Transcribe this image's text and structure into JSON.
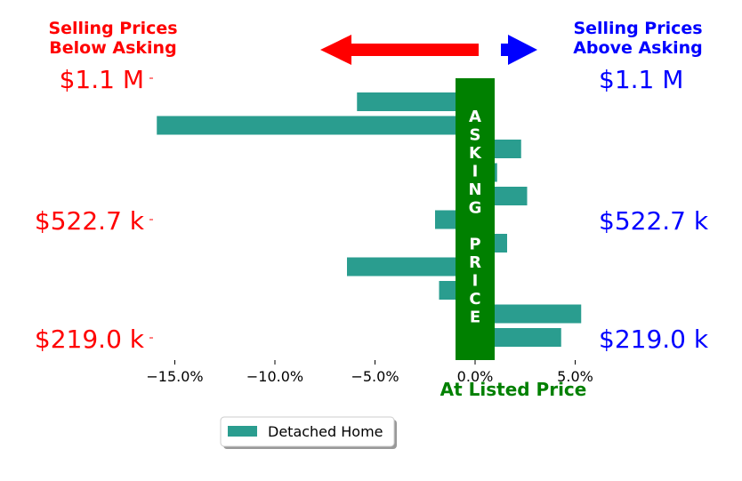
{
  "colors": {
    "bar": "#2a9d8f",
    "below": "#ff0000",
    "above": "#0000ff",
    "asking": "#008000"
  },
  "headers": {
    "below_line1": "Selling Prices",
    "below_line2": "Below Asking",
    "above_line1": "Selling Prices",
    "above_line2": "Above Asking"
  },
  "price_labels": {
    "top": "$1.1 M",
    "middle": "$522.7 k",
    "bottom": "$219.0 k"
  },
  "asking_letters": [
    "A",
    "S",
    "K",
    "I",
    "N",
    "G",
    "",
    "P",
    "R",
    "I",
    "C",
    "E"
  ],
  "listed_label": "At Listed Price",
  "legend_label": "Detached Home",
  "chart_data": {
    "type": "bar",
    "orientation": "horizontal",
    "series": [
      {
        "name": "Detached Home",
        "values": [
          -5.9,
          -15.9,
          2.3,
          1.1,
          2.6,
          -2.0,
          1.6,
          -6.4,
          -1.8,
          5.3,
          4.3
        ]
      }
    ],
    "xlim": [
      -17.5,
      5.9
    ],
    "xticks": [
      "−15.0%",
      "−10.0%",
      "−5.0%",
      "0.0%",
      "5.0%"
    ],
    "xtick_values": [
      -15,
      -10,
      -5,
      0,
      5
    ],
    "grid": false,
    "legend_position": "bottom-center"
  }
}
